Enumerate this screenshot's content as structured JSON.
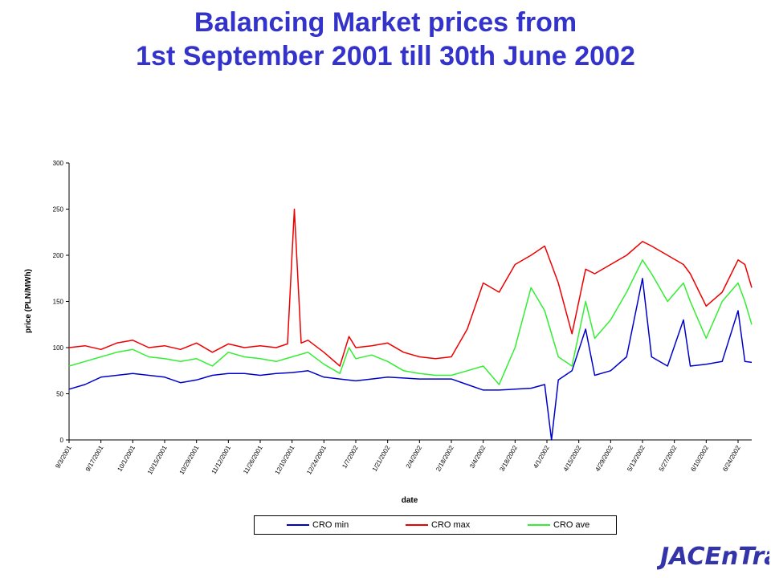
{
  "page": {
    "title_line1": "Balancing Market prices from",
    "title_line2": "1st September 2001 till 30th June 2002",
    "logo_text": "JACEnTra"
  },
  "colors": {
    "title": "#3333cc",
    "logo": "#3333aa",
    "CRO min": "#0000cc",
    "CRO max": "#ee0000",
    "CRO ave": "#33ee33"
  },
  "chart_data": {
    "type": "line",
    "xlabel": "date",
    "ylabel": "price (PLN/MWh)",
    "ylim": [
      0,
      300
    ],
    "yticks": [
      0,
      50,
      100,
      150,
      200,
      250,
      300
    ],
    "x_start": "9/3/2001",
    "x_end": "6/30/2002",
    "x_tick_labels": [
      "9/3/2001",
      "9/17/2001",
      "10/1/2001",
      "10/15/2001",
      "10/29/2001",
      "11/12/2001",
      "11/26/2001",
      "12/10/2001",
      "12/24/2001",
      "1/7/2002",
      "1/21/2002",
      "2/4/2002",
      "2/18/2002",
      "3/4/2002",
      "3/18/2002",
      "4/1/2002",
      "4/15/2002",
      "4/29/2002",
      "5/13/2002",
      "5/27/2002",
      "6/10/2002",
      "6/24/2002"
    ],
    "grid": false,
    "legend_position": "bottom",
    "series": [
      {
        "name": "CRO min",
        "values": [
          {
            "x": "9/3/2001",
            "y": 55
          },
          {
            "x": "9/10/2001",
            "y": 60
          },
          {
            "x": "9/17/2001",
            "y": 68
          },
          {
            "x": "9/24/2001",
            "y": 70
          },
          {
            "x": "10/1/2001",
            "y": 72
          },
          {
            "x": "10/8/2001",
            "y": 70
          },
          {
            "x": "10/15/2001",
            "y": 68
          },
          {
            "x": "10/22/2001",
            "y": 62
          },
          {
            "x": "10/29/2001",
            "y": 65
          },
          {
            "x": "11/5/2001",
            "y": 70
          },
          {
            "x": "11/12/2001",
            "y": 72
          },
          {
            "x": "11/19/2001",
            "y": 72
          },
          {
            "x": "11/26/2001",
            "y": 70
          },
          {
            "x": "12/3/2001",
            "y": 72
          },
          {
            "x": "12/10/2001",
            "y": 73
          },
          {
            "x": "12/17/2001",
            "y": 75
          },
          {
            "x": "12/24/2001",
            "y": 68
          },
          {
            "x": "12/31/2001",
            "y": 66
          },
          {
            "x": "1/7/2002",
            "y": 64
          },
          {
            "x": "1/14/2002",
            "y": 66
          },
          {
            "x": "1/21/2002",
            "y": 68
          },
          {
            "x": "1/28/2002",
            "y": 67
          },
          {
            "x": "2/4/2002",
            "y": 66
          },
          {
            "x": "2/11/2002",
            "y": 66
          },
          {
            "x": "2/18/2002",
            "y": 66
          },
          {
            "x": "2/25/2002",
            "y": 60
          },
          {
            "x": "3/4/2002",
            "y": 54
          },
          {
            "x": "3/11/2002",
            "y": 54
          },
          {
            "x": "3/18/2002",
            "y": 55
          },
          {
            "x": "3/25/2002",
            "y": 56
          },
          {
            "x": "3/31/2002",
            "y": 60
          },
          {
            "x": "4/3/2002",
            "y": 0
          },
          {
            "x": "4/6/2002",
            "y": 65
          },
          {
            "x": "4/12/2002",
            "y": 75
          },
          {
            "x": "4/18/2002",
            "y": 120
          },
          {
            "x": "4/22/2002",
            "y": 70
          },
          {
            "x": "4/29/2002",
            "y": 75
          },
          {
            "x": "5/6/2002",
            "y": 90
          },
          {
            "x": "5/13/2002",
            "y": 175
          },
          {
            "x": "5/17/2002",
            "y": 90
          },
          {
            "x": "5/24/2002",
            "y": 80
          },
          {
            "x": "5/31/2002",
            "y": 130
          },
          {
            "x": "6/3/2002",
            "y": 80
          },
          {
            "x": "6/10/2002",
            "y": 82
          },
          {
            "x": "6/17/2002",
            "y": 85
          },
          {
            "x": "6/24/2002",
            "y": 140
          },
          {
            "x": "6/27/2002",
            "y": 85
          },
          {
            "x": "6/30/2002",
            "y": 84
          }
        ]
      },
      {
        "name": "CRO max",
        "values": [
          {
            "x": "9/3/2001",
            "y": 100
          },
          {
            "x": "9/10/2001",
            "y": 102
          },
          {
            "x": "9/17/2001",
            "y": 98
          },
          {
            "x": "9/24/2001",
            "y": 105
          },
          {
            "x": "10/1/2001",
            "y": 108
          },
          {
            "x": "10/8/2001",
            "y": 100
          },
          {
            "x": "10/15/2001",
            "y": 102
          },
          {
            "x": "10/22/2001",
            "y": 98
          },
          {
            "x": "10/29/2001",
            "y": 105
          },
          {
            "x": "11/5/2001",
            "y": 95
          },
          {
            "x": "11/12/2001",
            "y": 104
          },
          {
            "x": "11/19/2001",
            "y": 100
          },
          {
            "x": "11/26/2001",
            "y": 102
          },
          {
            "x": "12/3/2001",
            "y": 100
          },
          {
            "x": "12/8/2001",
            "y": 104
          },
          {
            "x": "12/11/2001",
            "y": 250
          },
          {
            "x": "12/14/2001",
            "y": 105
          },
          {
            "x": "12/17/2001",
            "y": 108
          },
          {
            "x": "12/24/2001",
            "y": 95
          },
          {
            "x": "12/31/2001",
            "y": 80
          },
          {
            "x": "1/4/2002",
            "y": 112
          },
          {
            "x": "1/7/2002",
            "y": 100
          },
          {
            "x": "1/14/2002",
            "y": 102
          },
          {
            "x": "1/21/2002",
            "y": 105
          },
          {
            "x": "1/28/2002",
            "y": 95
          },
          {
            "x": "2/4/2002",
            "y": 90
          },
          {
            "x": "2/11/2002",
            "y": 88
          },
          {
            "x": "2/18/2002",
            "y": 90
          },
          {
            "x": "2/25/2002",
            "y": 120
          },
          {
            "x": "3/4/2002",
            "y": 170
          },
          {
            "x": "3/11/2002",
            "y": 160
          },
          {
            "x": "3/18/2002",
            "y": 190
          },
          {
            "x": "3/25/2002",
            "y": 200
          },
          {
            "x": "3/31/2002",
            "y": 210
          },
          {
            "x": "4/6/2002",
            "y": 170
          },
          {
            "x": "4/12/2002",
            "y": 115
          },
          {
            "x": "4/18/2002",
            "y": 185
          },
          {
            "x": "4/22/2002",
            "y": 180
          },
          {
            "x": "4/29/2002",
            "y": 190
          },
          {
            "x": "5/6/2002",
            "y": 200
          },
          {
            "x": "5/13/2002",
            "y": 215
          },
          {
            "x": "5/17/2002",
            "y": 210
          },
          {
            "x": "5/24/2002",
            "y": 200
          },
          {
            "x": "5/31/2002",
            "y": 190
          },
          {
            "x": "6/3/2002",
            "y": 180
          },
          {
            "x": "6/10/2002",
            "y": 145
          },
          {
            "x": "6/17/2002",
            "y": 160
          },
          {
            "x": "6/24/2002",
            "y": 195
          },
          {
            "x": "6/27/2002",
            "y": 190
          },
          {
            "x": "6/30/2002",
            "y": 165
          }
        ]
      },
      {
        "name": "CRO ave",
        "values": [
          {
            "x": "9/3/2001",
            "y": 80
          },
          {
            "x": "9/10/2001",
            "y": 85
          },
          {
            "x": "9/17/2001",
            "y": 90
          },
          {
            "x": "9/24/2001",
            "y": 95
          },
          {
            "x": "10/1/2001",
            "y": 98
          },
          {
            "x": "10/8/2001",
            "y": 90
          },
          {
            "x": "10/15/2001",
            "y": 88
          },
          {
            "x": "10/22/2001",
            "y": 85
          },
          {
            "x": "10/29/2001",
            "y": 88
          },
          {
            "x": "11/5/2001",
            "y": 80
          },
          {
            "x": "11/12/2001",
            "y": 95
          },
          {
            "x": "11/19/2001",
            "y": 90
          },
          {
            "x": "11/26/2001",
            "y": 88
          },
          {
            "x": "12/3/2001",
            "y": 85
          },
          {
            "x": "12/10/2001",
            "y": 90
          },
          {
            "x": "12/17/2001",
            "y": 95
          },
          {
            "x": "12/24/2001",
            "y": 82
          },
          {
            "x": "12/31/2001",
            "y": 72
          },
          {
            "x": "1/4/2002",
            "y": 100
          },
          {
            "x": "1/7/2002",
            "y": 88
          },
          {
            "x": "1/14/2002",
            "y": 92
          },
          {
            "x": "1/21/2002",
            "y": 85
          },
          {
            "x": "1/28/2002",
            "y": 75
          },
          {
            "x": "2/4/2002",
            "y": 72
          },
          {
            "x": "2/11/2002",
            "y": 70
          },
          {
            "x": "2/18/2002",
            "y": 70
          },
          {
            "x": "2/25/2002",
            "y": 75
          },
          {
            "x": "3/4/2002",
            "y": 80
          },
          {
            "x": "3/11/2002",
            "y": 60
          },
          {
            "x": "3/18/2002",
            "y": 100
          },
          {
            "x": "3/25/2002",
            "y": 165
          },
          {
            "x": "3/31/2002",
            "y": 140
          },
          {
            "x": "4/6/2002",
            "y": 90
          },
          {
            "x": "4/12/2002",
            "y": 80
          },
          {
            "x": "4/18/2002",
            "y": 150
          },
          {
            "x": "4/22/2002",
            "y": 110
          },
          {
            "x": "4/29/2002",
            "y": 130
          },
          {
            "x": "5/6/2002",
            "y": 160
          },
          {
            "x": "5/13/2002",
            "y": 195
          },
          {
            "x": "5/17/2002",
            "y": 180
          },
          {
            "x": "5/24/2002",
            "y": 150
          },
          {
            "x": "5/31/2002",
            "y": 170
          },
          {
            "x": "6/3/2002",
            "y": 150
          },
          {
            "x": "6/10/2002",
            "y": 110
          },
          {
            "x": "6/17/2002",
            "y": 150
          },
          {
            "x": "6/24/2002",
            "y": 170
          },
          {
            "x": "6/27/2002",
            "y": 150
          },
          {
            "x": "6/30/2002",
            "y": 125
          }
        ]
      }
    ]
  }
}
